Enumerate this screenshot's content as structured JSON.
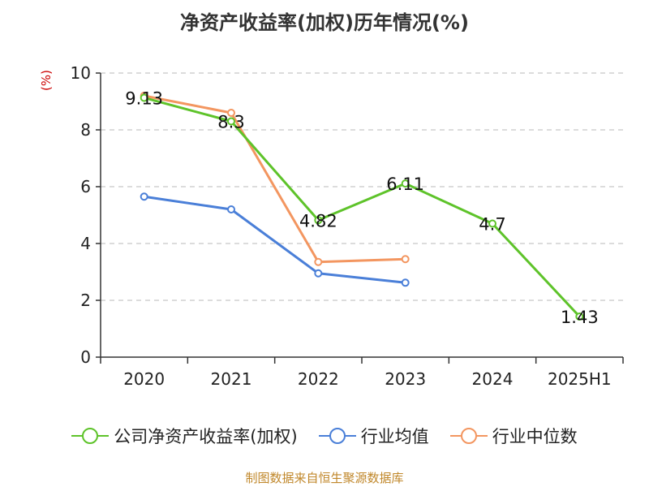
{
  "chart_data": {
    "type": "line",
    "title": "净资产收益率(加权)历年情况(%)",
    "ylabel": "(%)",
    "categories": [
      "2020",
      "2021",
      "2022",
      "2023",
      "2024",
      "2025H1"
    ],
    "ylim": [
      0,
      10
    ],
    "yticks": [
      0,
      2,
      4,
      6,
      8,
      10
    ],
    "grid": true,
    "legend_position": "bottom",
    "series": [
      {
        "name": "公司净资产收益率(加权)",
        "color": "#5ec32a",
        "values": [
          9.13,
          8.3,
          4.82,
          6.11,
          4.7,
          1.43
        ],
        "labels": [
          "9.13",
          "8.3",
          "4.82",
          "6.11",
          "4.7",
          "1.43"
        ]
      },
      {
        "name": "行业均值",
        "color": "#4a7fd8",
        "values": [
          5.65,
          5.2,
          2.95,
          2.62,
          null,
          null
        ]
      },
      {
        "name": "行业中位数",
        "color": "#f39660",
        "values": [
          9.2,
          8.6,
          3.35,
          3.45,
          null,
          null
        ]
      }
    ]
  },
  "source": "制图数据来自恒生聚源数据库"
}
